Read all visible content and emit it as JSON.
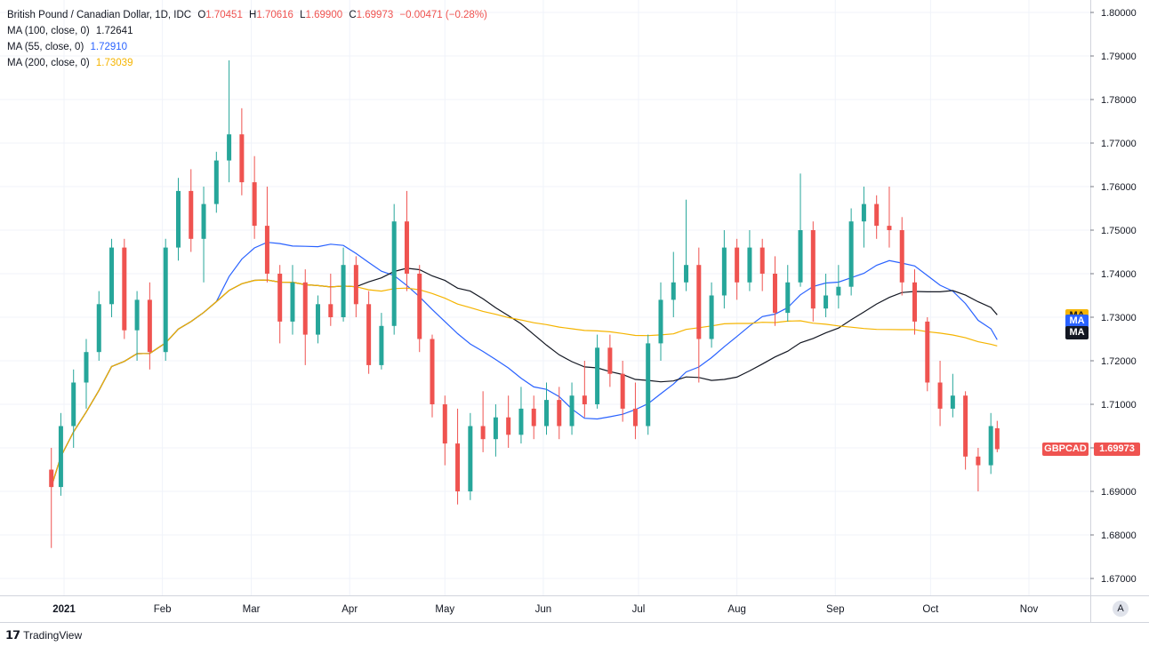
{
  "symbol": {
    "name": "British Pound / Canadian Dollar, 1D, IDC",
    "open_label": "O",
    "open": "1.70451",
    "high_label": "H",
    "high": "1.70616",
    "low_label": "L",
    "low": "1.69900",
    "close_label": "C",
    "close": "1.69973",
    "change": "−0.00471 (−0.28%)"
  },
  "indicators": [
    {
      "label": "MA (100, close, 0)",
      "value": "1.72641",
      "color": "#131722"
    },
    {
      "label": "MA (55, close, 0)",
      "value": "1.72910",
      "color": "#2962ff"
    },
    {
      "label": "MA (200, close, 0)",
      "value": "1.73039",
      "color": "#f5b400"
    }
  ],
  "price_tags": [
    {
      "label": "MA",
      "value": 1.7304,
      "color": "#f5b400"
    },
    {
      "label": "MA",
      "value": 1.7291,
      "color": "#2962ff"
    },
    {
      "label": "MA",
      "value": 1.7264,
      "color": "#131722"
    }
  ],
  "last_price": {
    "ticker": "GBPCAD",
    "value": "1.69973",
    "color": "#ef5350"
  },
  "branding": {
    "name": "TradingView"
  },
  "auto_button": "A",
  "chart_data": {
    "type": "candlestick",
    "y_range": [
      1.665,
      1.805
    ],
    "y_ticks": [
      1.8,
      1.79,
      1.78,
      1.77,
      1.76,
      1.75,
      1.74,
      1.73,
      1.72,
      1.71,
      1.7,
      1.69,
      1.68,
      1.67
    ],
    "x_labels": [
      "2021",
      "Feb",
      "Mar",
      "Apr",
      "May",
      "Jun",
      "Jul",
      "Aug",
      "Sep",
      "Oct",
      "Nov"
    ],
    "colors": {
      "up": "#26a69a",
      "down": "#ef5350",
      "ma55": "#2962ff",
      "ma100": "#131722",
      "ma200": "#f5b400"
    },
    "ohlc_points": [
      [
        "2020-12-28",
        1.695,
        1.7,
        1.677,
        1.691
      ],
      [
        "2020-12-31",
        1.691,
        1.708,
        1.689,
        1.705
      ],
      [
        "2021-01-04",
        1.705,
        1.718,
        1.7,
        1.715
      ],
      [
        "2021-01-08",
        1.715,
        1.725,
        1.709,
        1.722
      ],
      [
        "2021-01-12",
        1.722,
        1.736,
        1.72,
        1.733
      ],
      [
        "2021-01-16",
        1.733,
        1.748,
        1.73,
        1.746
      ],
      [
        "2021-01-20",
        1.746,
        1.748,
        1.725,
        1.727
      ],
      [
        "2021-01-24",
        1.727,
        1.736,
        1.72,
        1.734
      ],
      [
        "2021-01-28",
        1.734,
        1.738,
        1.718,
        1.722
      ],
      [
        "2021-02-02",
        1.722,
        1.748,
        1.72,
        1.746
      ],
      [
        "2021-02-06",
        1.746,
        1.762,
        1.743,
        1.759
      ],
      [
        "2021-02-10",
        1.759,
        1.764,
        1.745,
        1.748
      ],
      [
        "2021-02-14",
        1.748,
        1.76,
        1.738,
        1.756
      ],
      [
        "2021-02-18",
        1.756,
        1.768,
        1.754,
        1.766
      ],
      [
        "2021-02-22",
        1.766,
        1.789,
        1.761,
        1.772
      ],
      [
        "2021-02-26",
        1.772,
        1.778,
        1.758,
        1.761
      ],
      [
        "2021-03-02",
        1.761,
        1.767,
        1.748,
        1.751
      ],
      [
        "2021-03-06",
        1.751,
        1.76,
        1.738,
        1.74
      ],
      [
        "2021-03-10",
        1.74,
        1.742,
        1.724,
        1.729
      ],
      [
        "2021-03-14",
        1.729,
        1.742,
        1.726,
        1.738
      ],
      [
        "2021-03-18",
        1.738,
        1.741,
        1.719,
        1.726
      ],
      [
        "2021-03-22",
        1.726,
        1.735,
        1.724,
        1.733
      ],
      [
        "2021-03-26",
        1.733,
        1.74,
        1.728,
        1.73
      ],
      [
        "2021-03-30",
        1.73,
        1.746,
        1.729,
        1.742
      ],
      [
        "2021-04-03",
        1.742,
        1.744,
        1.73,
        1.733
      ],
      [
        "2021-04-07",
        1.733,
        1.736,
        1.717,
        1.719
      ],
      [
        "2021-04-11",
        1.719,
        1.731,
        1.718,
        1.728
      ],
      [
        "2021-04-15",
        1.728,
        1.756,
        1.726,
        1.752
      ],
      [
        "2021-04-19",
        1.752,
        1.759,
        1.736,
        1.74
      ],
      [
        "2021-04-23",
        1.74,
        1.742,
        1.722,
        1.725
      ],
      [
        "2021-04-27",
        1.725,
        1.726,
        1.707,
        1.71
      ],
      [
        "2021-05-01",
        1.71,
        1.712,
        1.696,
        1.701
      ],
      [
        "2021-05-05",
        1.701,
        1.709,
        1.687,
        1.69
      ],
      [
        "2021-05-09",
        1.69,
        1.708,
        1.688,
        1.705
      ],
      [
        "2021-05-13",
        1.705,
        1.713,
        1.699,
        1.702
      ],
      [
        "2021-05-17",
        1.702,
        1.71,
        1.698,
        1.707
      ],
      [
        "2021-05-21",
        1.707,
        1.712,
        1.7,
        1.703
      ],
      [
        "2021-05-25",
        1.703,
        1.714,
        1.701,
        1.709
      ],
      [
        "2021-05-29",
        1.709,
        1.712,
        1.702,
        1.705
      ],
      [
        "2021-06-02",
        1.705,
        1.715,
        1.703,
        1.711
      ],
      [
        "2021-06-06",
        1.711,
        1.714,
        1.702,
        1.705
      ],
      [
        "2021-06-10",
        1.705,
        1.715,
        1.703,
        1.712
      ],
      [
        "2021-06-14",
        1.712,
        1.72,
        1.707,
        1.71
      ],
      [
        "2021-06-18",
        1.71,
        1.726,
        1.709,
        1.723
      ],
      [
        "2021-06-22",
        1.723,
        1.726,
        1.714,
        1.717
      ],
      [
        "2021-06-26",
        1.717,
        1.72,
        1.706,
        1.709
      ],
      [
        "2021-06-30",
        1.709,
        1.715,
        1.702,
        1.705
      ],
      [
        "2021-07-04",
        1.705,
        1.726,
        1.703,
        1.724
      ],
      [
        "2021-07-08",
        1.724,
        1.738,
        1.72,
        1.734
      ],
      [
        "2021-07-12",
        1.734,
        1.745,
        1.73,
        1.738
      ],
      [
        "2021-07-16",
        1.738,
        1.757,
        1.736,
        1.742
      ],
      [
        "2021-07-20",
        1.742,
        1.746,
        1.715,
        1.725
      ],
      [
        "2021-07-24",
        1.725,
        1.738,
        1.723,
        1.735
      ],
      [
        "2021-07-28",
        1.735,
        1.75,
        1.732,
        1.746
      ],
      [
        "2021-08-01",
        1.746,
        1.748,
        1.734,
        1.738
      ],
      [
        "2021-08-05",
        1.738,
        1.75,
        1.736,
        1.746
      ],
      [
        "2021-08-09",
        1.746,
        1.748,
        1.736,
        1.74
      ],
      [
        "2021-08-13",
        1.74,
        1.744,
        1.728,
        1.731
      ],
      [
        "2021-08-17",
        1.731,
        1.742,
        1.729,
        1.738
      ],
      [
        "2021-08-21",
        1.738,
        1.763,
        1.737,
        1.75
      ],
      [
        "2021-08-25",
        1.75,
        1.752,
        1.729,
        1.732
      ],
      [
        "2021-08-29",
        1.732,
        1.74,
        1.73,
        1.735
      ],
      [
        "2021-09-02",
        1.735,
        1.742,
        1.732,
        1.737
      ],
      [
        "2021-09-06",
        1.737,
        1.755,
        1.735,
        1.752
      ],
      [
        "2021-09-10",
        1.752,
        1.76,
        1.746,
        1.756
      ],
      [
        "2021-09-14",
        1.756,
        1.758,
        1.748,
        1.751
      ],
      [
        "2021-09-18",
        1.751,
        1.76,
        1.746,
        1.75
      ],
      [
        "2021-09-22",
        1.75,
        1.753,
        1.735,
        1.738
      ],
      [
        "2021-09-26",
        1.738,
        1.741,
        1.726,
        1.729
      ],
      [
        "2021-09-30",
        1.729,
        1.73,
        1.713,
        1.715
      ],
      [
        "2021-10-04",
        1.715,
        1.72,
        1.705,
        1.709
      ],
      [
        "2021-10-08",
        1.709,
        1.717,
        1.707,
        1.712
      ],
      [
        "2021-10-12",
        1.712,
        1.713,
        1.695,
        1.698
      ],
      [
        "2021-10-16",
        1.698,
        1.7,
        1.69,
        1.696
      ],
      [
        "2021-10-20",
        1.696,
        1.708,
        1.694,
        1.705
      ],
      [
        "2021-10-22",
        1.7045,
        1.7062,
        1.699,
        1.6997
      ]
    ]
  }
}
